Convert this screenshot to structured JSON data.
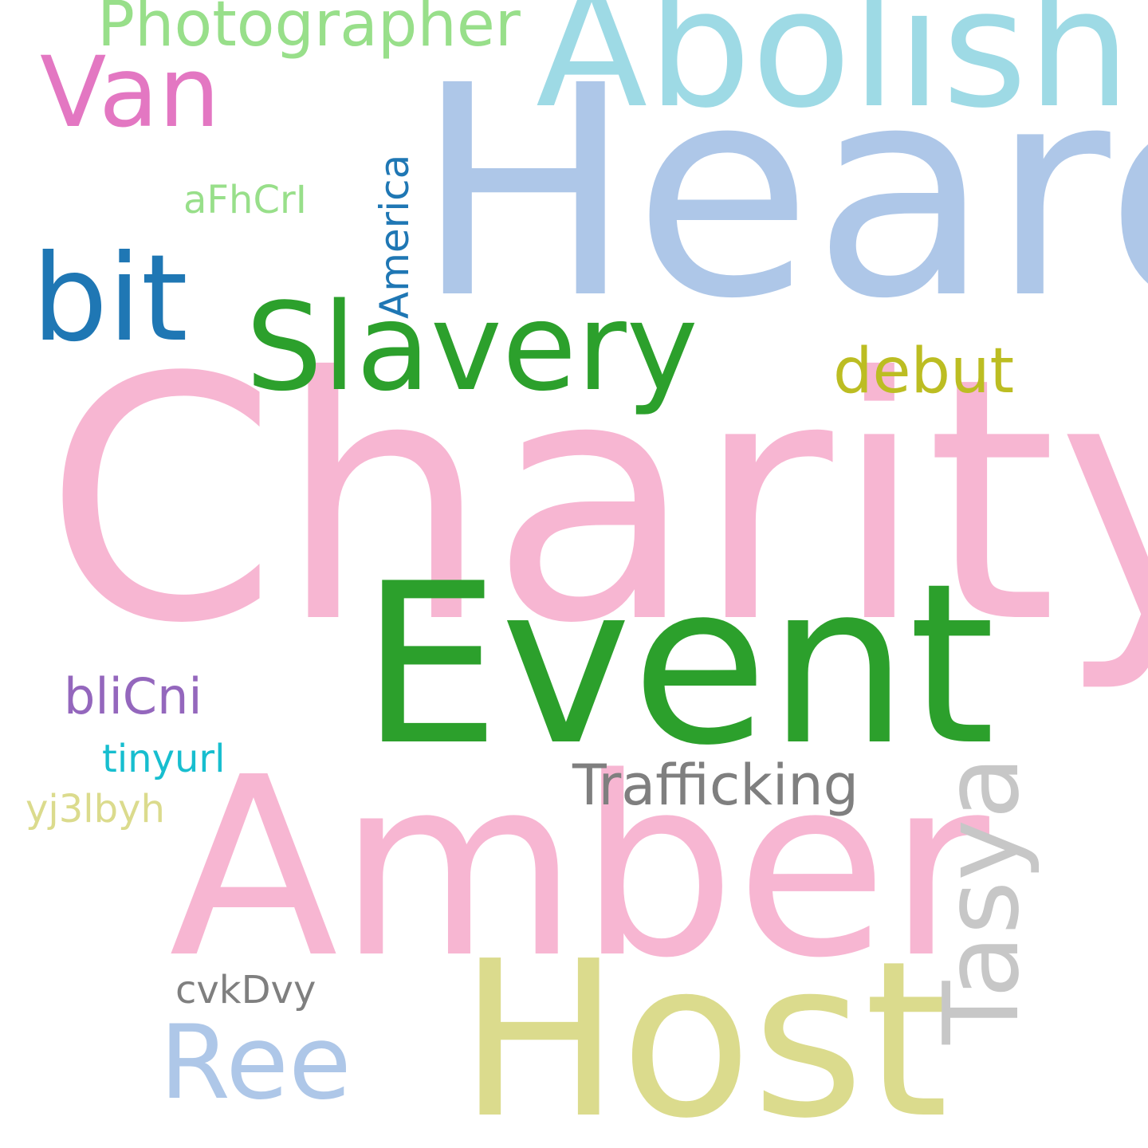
{
  "word_cloud": {
    "words": [
      {
        "id": "charity",
        "text": "Charity",
        "color": "#f7b6d2",
        "orientation": "horizontal"
      },
      {
        "id": "heard",
        "text": "Heard",
        "color": "#aec7e8",
        "orientation": "horizontal"
      },
      {
        "id": "event",
        "text": "Event",
        "color": "#2ca02c",
        "orientation": "horizontal"
      },
      {
        "id": "amber",
        "text": "Amber",
        "color": "#f7b6d2",
        "orientation": "horizontal"
      },
      {
        "id": "host",
        "text": "Host",
        "color": "#dbdb8d",
        "orientation": "horizontal"
      },
      {
        "id": "abolish",
        "text": "Abolish",
        "color": "#9edae5",
        "orientation": "horizontal"
      },
      {
        "id": "slavery",
        "text": "Slavery",
        "color": "#2ca02c",
        "orientation": "horizontal"
      },
      {
        "id": "bit",
        "text": "bit",
        "color": "#1f77b4",
        "orientation": "horizontal"
      },
      {
        "id": "van",
        "text": "Van",
        "color": "#e377c2",
        "orientation": "horizontal"
      },
      {
        "id": "ree",
        "text": "Ree",
        "color": "#aec7e8",
        "orientation": "horizontal"
      },
      {
        "id": "photographer",
        "text": "Photographer",
        "color": "#98df8a",
        "orientation": "horizontal"
      },
      {
        "id": "debut",
        "text": "debut",
        "color": "#bcbd22",
        "orientation": "horizontal"
      },
      {
        "id": "trafficking",
        "text": "Trafficking",
        "color": "#7f7f7f",
        "orientation": "horizontal"
      },
      {
        "id": "blicni",
        "text": "bliCni",
        "color": "#9467bd",
        "orientation": "horizontal"
      },
      {
        "id": "tinyurl",
        "text": "tinyurl",
        "color": "#17becf",
        "orientation": "horizontal"
      },
      {
        "id": "yj3lbyh",
        "text": "yj3lbyh",
        "color": "#dbdb8d",
        "orientation": "horizontal"
      },
      {
        "id": "cvkdvy",
        "text": "cvkDvy",
        "color": "#7f7f7f",
        "orientation": "horizontal"
      },
      {
        "id": "afhcri",
        "text": "aFhCrI",
        "color": "#98df8a",
        "orientation": "horizontal"
      },
      {
        "id": "tasya",
        "text": "Tasya",
        "color": "#c7c7c7",
        "orientation": "vertical"
      },
      {
        "id": "america",
        "text": "America",
        "color": "#1f77b4",
        "orientation": "vertical"
      }
    ]
  }
}
